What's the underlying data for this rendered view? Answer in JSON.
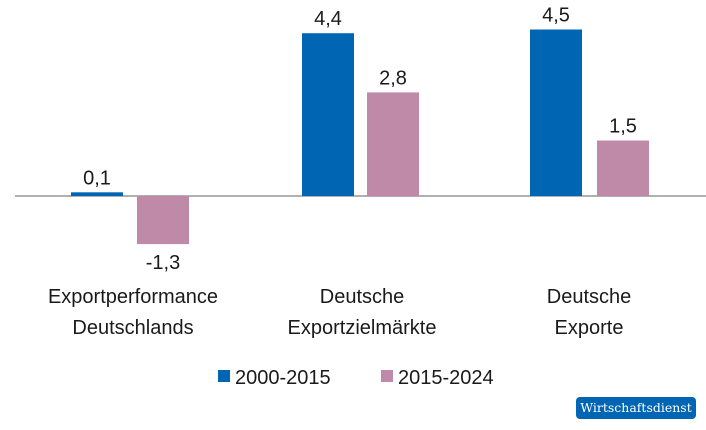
{
  "chart_data": {
    "type": "bar",
    "categories": [
      [
        "Exportperformance",
        "Deutschlands"
      ],
      [
        "Deutsche",
        "Exportzielmärkte"
      ],
      [
        "Deutsche",
        "Exporte"
      ]
    ],
    "series": [
      {
        "name": "2000-2015",
        "values": [
          0.1,
          4.4,
          4.5
        ],
        "labels": [
          "0,1",
          "4,4",
          "4,5"
        ],
        "color": "#0066b3"
      },
      {
        "name": "2015-2024",
        "values": [
          -1.3,
          2.8,
          1.5
        ],
        "labels": [
          "-1,3",
          "2,8",
          "1,5"
        ],
        "color": "#bf8aa8"
      }
    ],
    "title": "",
    "xlabel": "",
    "ylabel": "",
    "ylim": [
      -1.3,
      4.5
    ],
    "grid": false,
    "legend": "bottom",
    "zero_line_color": "#808080"
  },
  "brand": {
    "label": "Wirtschaftsdienst",
    "color": "#0066b3"
  }
}
